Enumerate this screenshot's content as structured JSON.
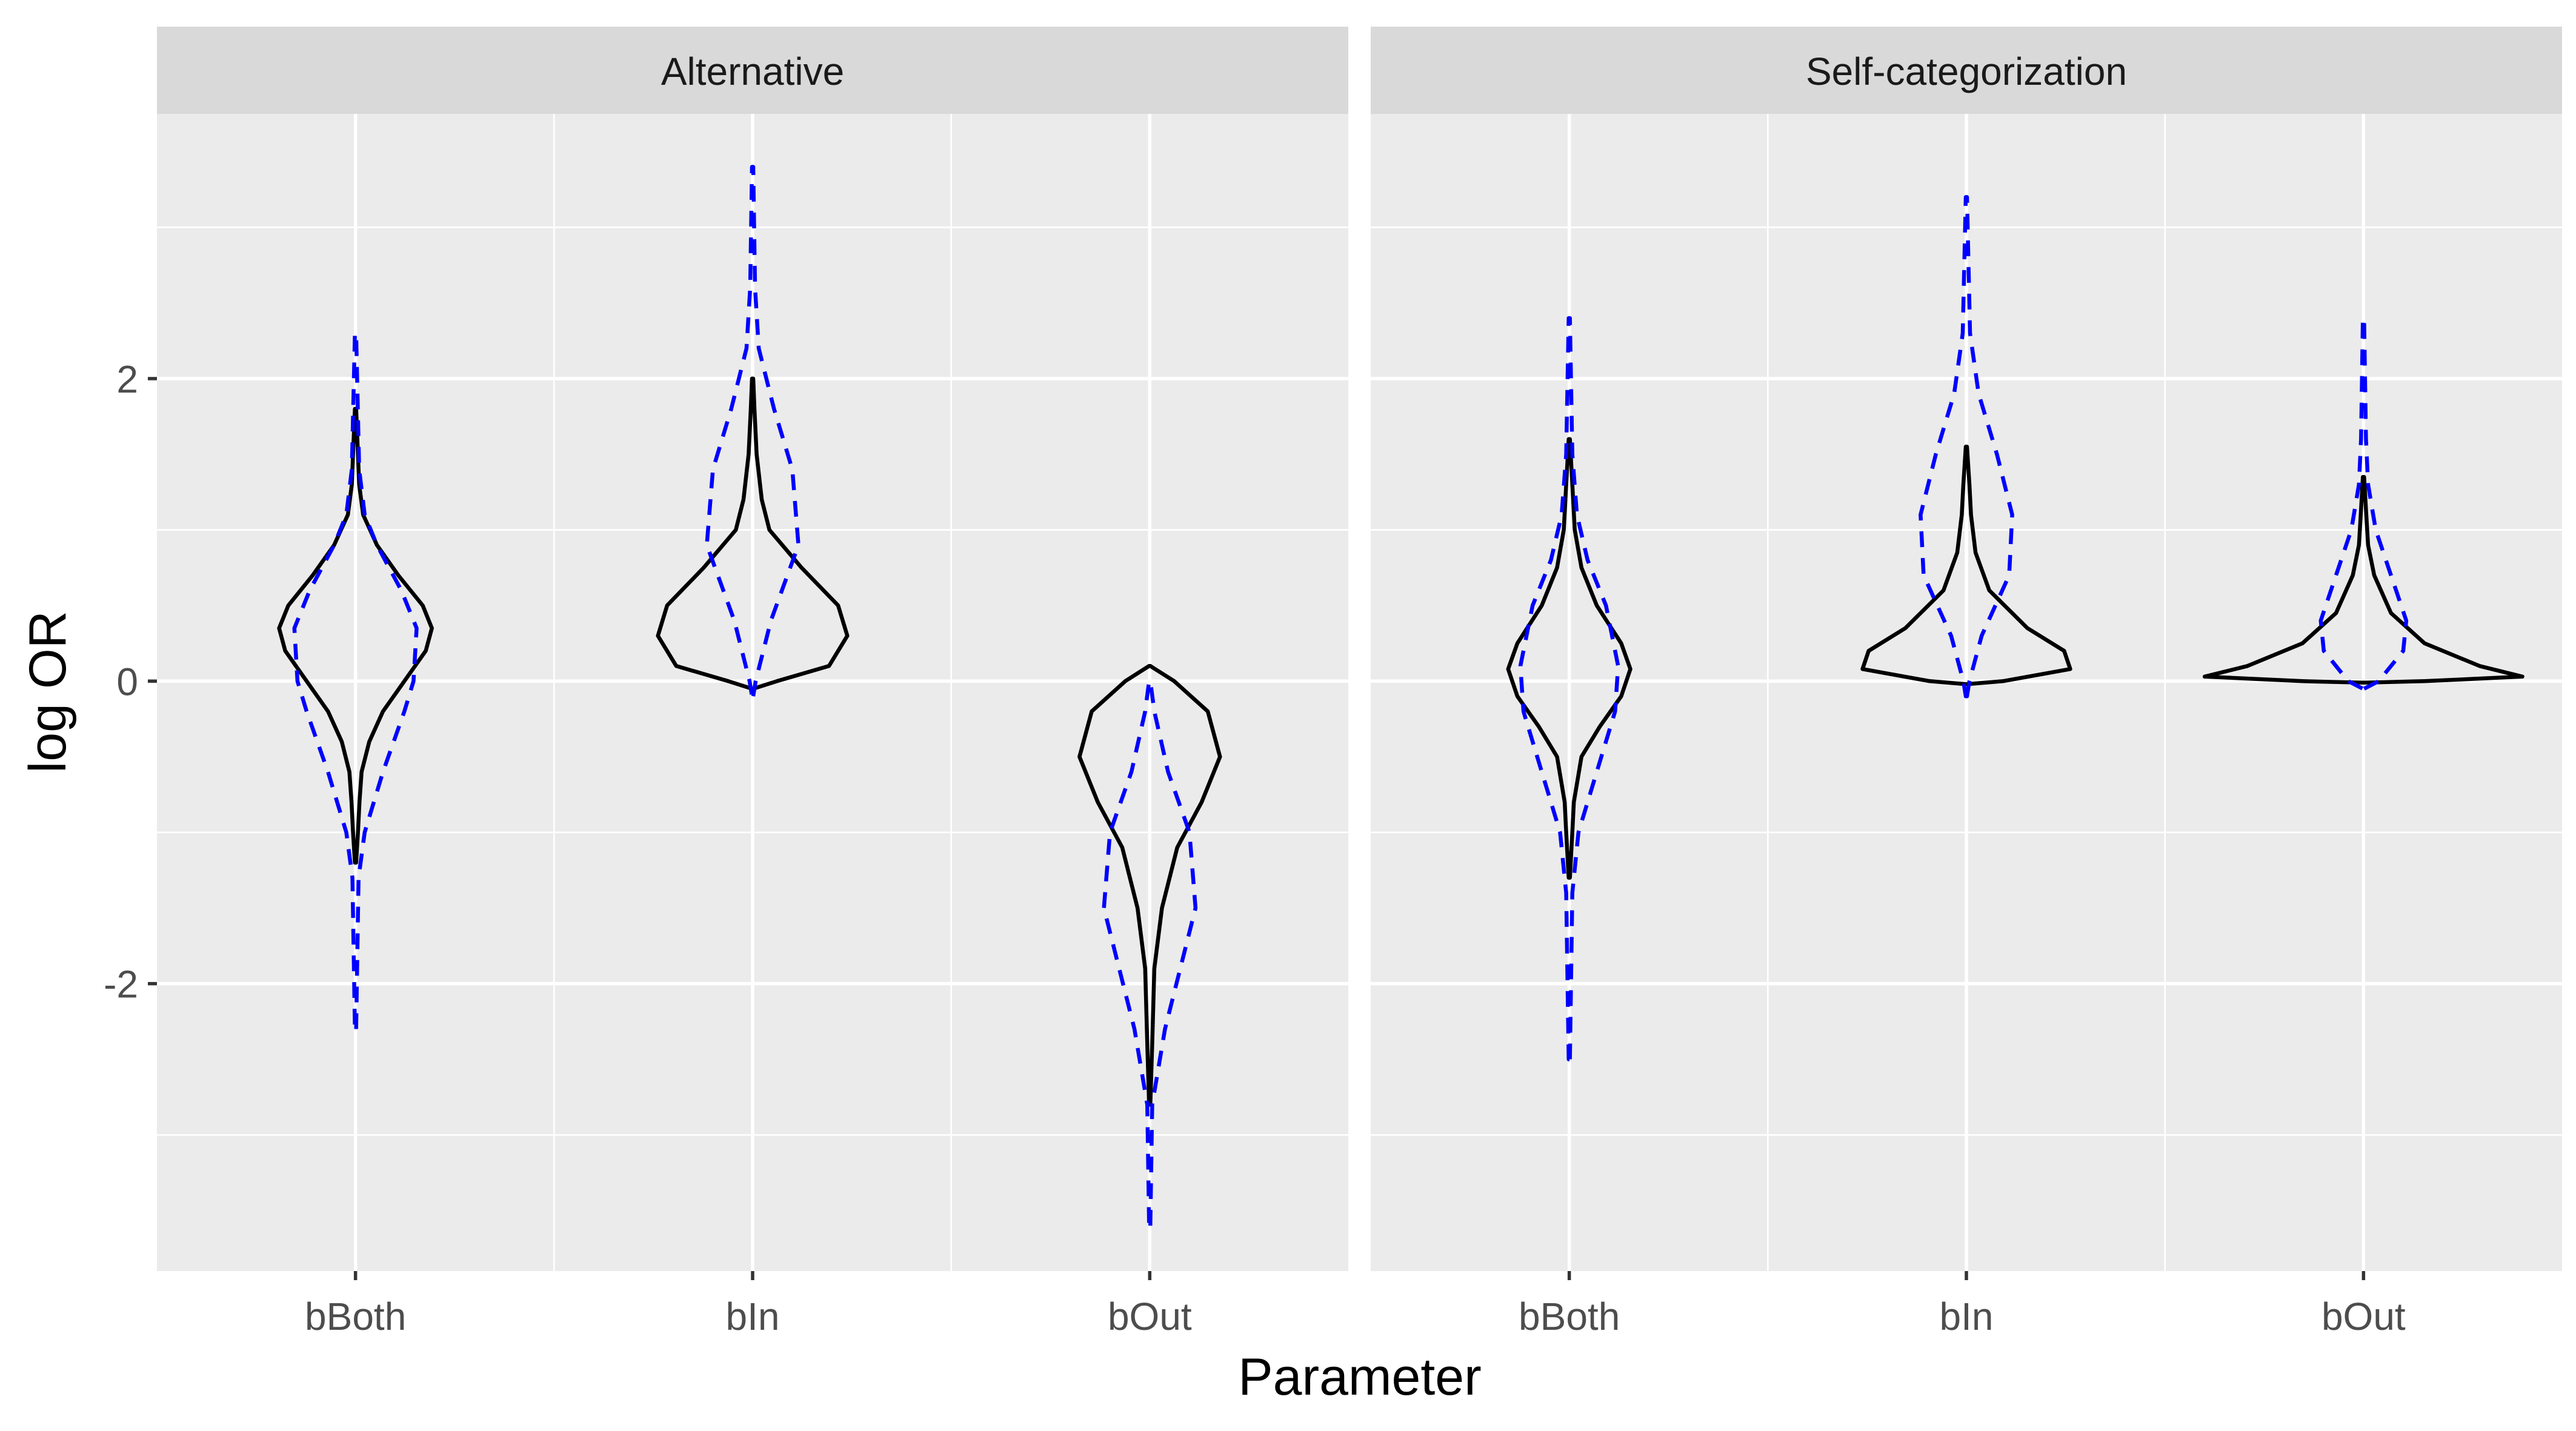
{
  "chart_data": {
    "type": "violin",
    "xlabel": "Parameter",
    "ylabel": "log OR",
    "ylim": [
      -3.9,
      3.75
    ],
    "y_ticks": [
      -2,
      0,
      2
    ],
    "y_minor_ticks": [
      -3,
      -1,
      1,
      3
    ],
    "categories": [
      "bBoth",
      "bIn",
      "bOut"
    ],
    "series_styles": [
      {
        "key": "solid",
        "line": "solid",
        "color": "#000000"
      },
      {
        "key": "dashed",
        "line": "dashed",
        "color": "#0000FF"
      }
    ],
    "panels": [
      {
        "title": "Alternative",
        "violins": [
          {
            "category": "bBoth",
            "solid": {
              "ymin": -1.2,
              "ymax": 1.8,
              "profile": [
                [
                  -1.2,
                  0.002
                ],
                [
                  -1.0,
                  0.008
                ],
                [
                  -0.8,
                  0.013
                ],
                [
                  -0.6,
                  0.02
                ],
                [
                  -0.4,
                  0.045
                ],
                [
                  -0.2,
                  0.09
                ],
                [
                  0.0,
                  0.16
                ],
                [
                  0.2,
                  0.23
                ],
                [
                  0.35,
                  0.25
                ],
                [
                  0.5,
                  0.22
                ],
                [
                  0.7,
                  0.14
                ],
                [
                  0.9,
                  0.07
                ],
                [
                  1.1,
                  0.025
                ],
                [
                  1.3,
                  0.012
                ],
                [
                  1.5,
                  0.008
                ],
                [
                  1.8,
                  0.002
                ]
              ]
            },
            "dashed": {
              "ymin": -2.3,
              "ymax": 2.3,
              "profile": [
                [
                  -2.3,
                  0.002
                ],
                [
                  -1.3,
                  0.01
                ],
                [
                  -1.0,
                  0.03
                ],
                [
                  -0.6,
                  0.09
                ],
                [
                  -0.2,
                  0.16
                ],
                [
                  0.0,
                  0.19
                ],
                [
                  0.35,
                  0.2
                ],
                [
                  0.6,
                  0.15
                ],
                [
                  0.9,
                  0.07
                ],
                [
                  1.1,
                  0.03
                ],
                [
                  1.4,
                  0.012
                ],
                [
                  2.3,
                  0.002
                ]
              ]
            }
          },
          {
            "category": "bIn",
            "solid": {
              "ymin": -0.05,
              "ymax": 2.0,
              "profile": [
                [
                  -0.05,
                  0.002
                ],
                [
                  0.0,
                  0.08
                ],
                [
                  0.1,
                  0.25
                ],
                [
                  0.3,
                  0.31
                ],
                [
                  0.5,
                  0.28
                ],
                [
                  0.75,
                  0.16
                ],
                [
                  1.0,
                  0.055
                ],
                [
                  1.2,
                  0.03
                ],
                [
                  1.5,
                  0.013
                ],
                [
                  1.8,
                  0.006
                ],
                [
                  2.0,
                  0.002
                ]
              ]
            },
            "dashed": {
              "ymin": -0.1,
              "ymax": 3.4,
              "profile": [
                [
                  -0.1,
                  0.002
                ],
                [
                  0.0,
                  0.01
                ],
                [
                  0.4,
                  0.06
                ],
                [
                  0.9,
                  0.15
                ],
                [
                  1.4,
                  0.13
                ],
                [
                  1.8,
                  0.07
                ],
                [
                  2.2,
                  0.02
                ],
                [
                  2.6,
                  0.008
                ],
                [
                  3.4,
                  0.002
                ]
              ]
            }
          },
          {
            "category": "bOut",
            "solid": {
              "ymin": -2.8,
              "ymax": 0.1,
              "profile": [
                [
                  -2.8,
                  0.002
                ],
                [
                  -2.4,
                  0.008
                ],
                [
                  -1.9,
                  0.015
                ],
                [
                  -1.5,
                  0.04
                ],
                [
                  -1.1,
                  0.09
                ],
                [
                  -0.8,
                  0.17
                ],
                [
                  -0.5,
                  0.23
                ],
                [
                  -0.2,
                  0.19
                ],
                [
                  0.0,
                  0.08
                ],
                [
                  0.1,
                  0.002
                ]
              ]
            },
            "dashed": {
              "ymin": -3.6,
              "ymax": 0.0,
              "profile": [
                [
                  -3.6,
                  0.002
                ],
                [
                  -2.8,
                  0.008
                ],
                [
                  -2.3,
                  0.05
                ],
                [
                  -1.9,
                  0.1
                ],
                [
                  -1.5,
                  0.15
                ],
                [
                  -1.0,
                  0.13
                ],
                [
                  -0.6,
                  0.06
                ],
                [
                  -0.2,
                  0.015
                ],
                [
                  0.0,
                  0.002
                ]
              ]
            }
          }
        ]
      },
      {
        "title": "Self-categorization",
        "violins": [
          {
            "category": "bBoth",
            "solid": {
              "ymin": -1.3,
              "ymax": 1.6,
              "profile": [
                [
                  -1.3,
                  0.002
                ],
                [
                  -1.0,
                  0.01
                ],
                [
                  -0.8,
                  0.015
                ],
                [
                  -0.5,
                  0.04
                ],
                [
                  -0.3,
                  0.1
                ],
                [
                  -0.1,
                  0.17
                ],
                [
                  0.08,
                  0.2
                ],
                [
                  0.25,
                  0.17
                ],
                [
                  0.5,
                  0.09
                ],
                [
                  0.75,
                  0.04
                ],
                [
                  1.0,
                  0.018
                ],
                [
                  1.3,
                  0.01
                ],
                [
                  1.6,
                  0.002
                ]
              ]
            },
            "dashed": {
              "ymin": -2.5,
              "ymax": 2.4,
              "profile": [
                [
                  -2.5,
                  0.002
                ],
                [
                  -1.4,
                  0.01
                ],
                [
                  -1.0,
                  0.03
                ],
                [
                  -0.6,
                  0.09
                ],
                [
                  -0.2,
                  0.15
                ],
                [
                  0.1,
                  0.16
                ],
                [
                  0.5,
                  0.12
                ],
                [
                  0.8,
                  0.06
                ],
                [
                  1.1,
                  0.025
                ],
                [
                  1.5,
                  0.01
                ],
                [
                  2.4,
                  0.002
                ]
              ]
            }
          },
          {
            "category": "bIn",
            "solid": {
              "ymin": -0.02,
              "ymax": 1.55,
              "profile": [
                [
                  -0.02,
                  0.002
                ],
                [
                  0.0,
                  0.12
                ],
                [
                  0.08,
                  0.34
                ],
                [
                  0.2,
                  0.32
                ],
                [
                  0.35,
                  0.2
                ],
                [
                  0.6,
                  0.075
                ],
                [
                  0.85,
                  0.03
                ],
                [
                  1.1,
                  0.015
                ],
                [
                  1.3,
                  0.01
                ],
                [
                  1.55,
                  0.002
                ]
              ]
            },
            "dashed": {
              "ymin": -0.1,
              "ymax": 3.2,
              "profile": [
                [
                  -0.1,
                  0.002
                ],
                [
                  0.0,
                  0.01
                ],
                [
                  0.3,
                  0.05
                ],
                [
                  0.7,
                  0.14
                ],
                [
                  1.1,
                  0.15
                ],
                [
                  1.5,
                  0.1
                ],
                [
                  1.9,
                  0.04
                ],
                [
                  2.3,
                  0.012
                ],
                [
                  3.2,
                  0.002
                ]
              ]
            }
          },
          {
            "category": "bOut",
            "solid": {
              "ymin": -0.01,
              "ymax": 1.35,
              "profile": [
                [
                  -0.01,
                  0.002
                ],
                [
                  0.0,
                  0.2
                ],
                [
                  0.03,
                  0.52
                ],
                [
                  0.1,
                  0.38
                ],
                [
                  0.25,
                  0.2
                ],
                [
                  0.45,
                  0.09
                ],
                [
                  0.7,
                  0.035
                ],
                [
                  0.9,
                  0.015
                ],
                [
                  1.1,
                  0.009
                ],
                [
                  1.35,
                  0.002
                ]
              ]
            },
            "dashed": {
              "ymin": -0.05,
              "ymax": 2.4,
              "profile": [
                [
                  -0.05,
                  0.002
                ],
                [
                  0.0,
                  0.05
                ],
                [
                  0.2,
                  0.13
                ],
                [
                  0.4,
                  0.14
                ],
                [
                  0.7,
                  0.09
                ],
                [
                  1.0,
                  0.04
                ],
                [
                  1.3,
                  0.015
                ],
                [
                  1.6,
                  0.008
                ],
                [
                  2.4,
                  0.002
                ]
              ]
            }
          }
        ]
      }
    ]
  }
}
